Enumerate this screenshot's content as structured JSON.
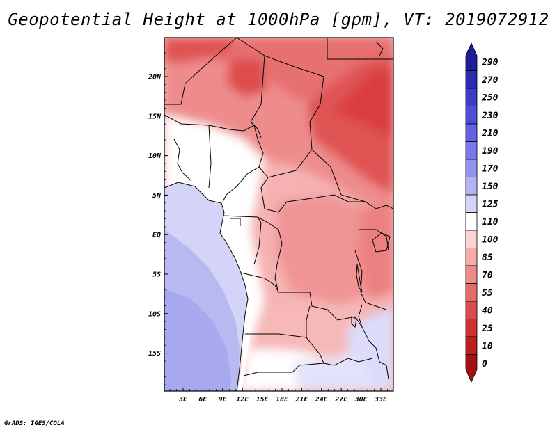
{
  "title": "Geopotential Height at 1000hPa [gpm], VT: 2019072912",
  "credit": "GrADS: IGES/COLA",
  "map": {
    "region": "Central Africa",
    "variable": "Geopotential Height at 1000hPa",
    "units": "gpm",
    "valid_time": "2019072912",
    "lat_ticks": [
      "20N",
      "15N",
      "10N",
      "5N",
      "EQ",
      "5S",
      "10S",
      "15S"
    ],
    "lon_ticks": [
      "3E",
      "6E",
      "9E",
      "12E",
      "15E",
      "18E",
      "21E",
      "24E",
      "27E",
      "30E",
      "33E"
    ]
  },
  "colorbar": {
    "levels": [
      "290",
      "270",
      "250",
      "230",
      "210",
      "190",
      "170",
      "150",
      "125",
      "110",
      "100",
      "85",
      "70",
      "55",
      "40",
      "25",
      "10",
      "0"
    ],
    "colors": [
      "#1e1e9a",
      "#2c2cb2",
      "#3c3cc6",
      "#4e4ed6",
      "#6262e2",
      "#7878ea",
      "#9494f0",
      "#b4b4f4",
      "#d4d4f8",
      "#ffffff",
      "#fcd2d2",
      "#f7adad",
      "#ef8a8a",
      "#e56a6a",
      "#dc4c4c",
      "#cf3232",
      "#bc1e1e",
      "#a41010"
    ]
  }
}
